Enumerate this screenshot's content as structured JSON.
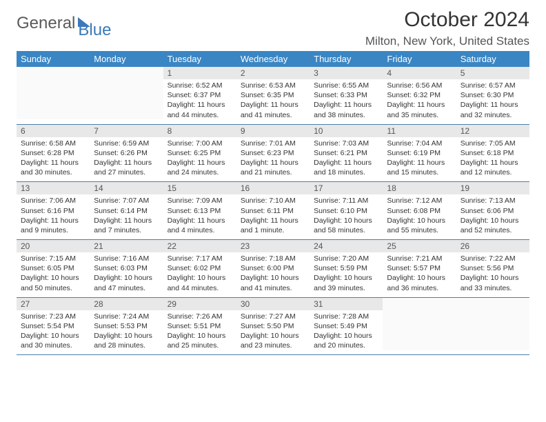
{
  "brand": {
    "part1": "General",
    "part2": "Blue"
  },
  "title": "October 2024",
  "location": "Milton, New York, United States",
  "colors": {
    "header_bg": "#3a86c4",
    "header_fg": "#ffffff",
    "daynum_bg": "#e8e8e8",
    "row_border": "#4a7fa8",
    "text": "#333333",
    "logo_accent": "#3a7ab8"
  },
  "day_names": [
    "Sunday",
    "Monday",
    "Tuesday",
    "Wednesday",
    "Thursday",
    "Friday",
    "Saturday"
  ],
  "weeks": [
    [
      {
        "n": "",
        "sr": "",
        "ss": "",
        "dl": ""
      },
      {
        "n": "",
        "sr": "",
        "ss": "",
        "dl": ""
      },
      {
        "n": "1",
        "sr": "Sunrise: 6:52 AM",
        "ss": "Sunset: 6:37 PM",
        "dl": "Daylight: 11 hours and 44 minutes."
      },
      {
        "n": "2",
        "sr": "Sunrise: 6:53 AM",
        "ss": "Sunset: 6:35 PM",
        "dl": "Daylight: 11 hours and 41 minutes."
      },
      {
        "n": "3",
        "sr": "Sunrise: 6:55 AM",
        "ss": "Sunset: 6:33 PM",
        "dl": "Daylight: 11 hours and 38 minutes."
      },
      {
        "n": "4",
        "sr": "Sunrise: 6:56 AM",
        "ss": "Sunset: 6:32 PM",
        "dl": "Daylight: 11 hours and 35 minutes."
      },
      {
        "n": "5",
        "sr": "Sunrise: 6:57 AM",
        "ss": "Sunset: 6:30 PM",
        "dl": "Daylight: 11 hours and 32 minutes."
      }
    ],
    [
      {
        "n": "6",
        "sr": "Sunrise: 6:58 AM",
        "ss": "Sunset: 6:28 PM",
        "dl": "Daylight: 11 hours and 30 minutes."
      },
      {
        "n": "7",
        "sr": "Sunrise: 6:59 AM",
        "ss": "Sunset: 6:26 PM",
        "dl": "Daylight: 11 hours and 27 minutes."
      },
      {
        "n": "8",
        "sr": "Sunrise: 7:00 AM",
        "ss": "Sunset: 6:25 PM",
        "dl": "Daylight: 11 hours and 24 minutes."
      },
      {
        "n": "9",
        "sr": "Sunrise: 7:01 AM",
        "ss": "Sunset: 6:23 PM",
        "dl": "Daylight: 11 hours and 21 minutes."
      },
      {
        "n": "10",
        "sr": "Sunrise: 7:03 AM",
        "ss": "Sunset: 6:21 PM",
        "dl": "Daylight: 11 hours and 18 minutes."
      },
      {
        "n": "11",
        "sr": "Sunrise: 7:04 AM",
        "ss": "Sunset: 6:19 PM",
        "dl": "Daylight: 11 hours and 15 minutes."
      },
      {
        "n": "12",
        "sr": "Sunrise: 7:05 AM",
        "ss": "Sunset: 6:18 PM",
        "dl": "Daylight: 11 hours and 12 minutes."
      }
    ],
    [
      {
        "n": "13",
        "sr": "Sunrise: 7:06 AM",
        "ss": "Sunset: 6:16 PM",
        "dl": "Daylight: 11 hours and 9 minutes."
      },
      {
        "n": "14",
        "sr": "Sunrise: 7:07 AM",
        "ss": "Sunset: 6:14 PM",
        "dl": "Daylight: 11 hours and 7 minutes."
      },
      {
        "n": "15",
        "sr": "Sunrise: 7:09 AM",
        "ss": "Sunset: 6:13 PM",
        "dl": "Daylight: 11 hours and 4 minutes."
      },
      {
        "n": "16",
        "sr": "Sunrise: 7:10 AM",
        "ss": "Sunset: 6:11 PM",
        "dl": "Daylight: 11 hours and 1 minute."
      },
      {
        "n": "17",
        "sr": "Sunrise: 7:11 AM",
        "ss": "Sunset: 6:10 PM",
        "dl": "Daylight: 10 hours and 58 minutes."
      },
      {
        "n": "18",
        "sr": "Sunrise: 7:12 AM",
        "ss": "Sunset: 6:08 PM",
        "dl": "Daylight: 10 hours and 55 minutes."
      },
      {
        "n": "19",
        "sr": "Sunrise: 7:13 AM",
        "ss": "Sunset: 6:06 PM",
        "dl": "Daylight: 10 hours and 52 minutes."
      }
    ],
    [
      {
        "n": "20",
        "sr": "Sunrise: 7:15 AM",
        "ss": "Sunset: 6:05 PM",
        "dl": "Daylight: 10 hours and 50 minutes."
      },
      {
        "n": "21",
        "sr": "Sunrise: 7:16 AM",
        "ss": "Sunset: 6:03 PM",
        "dl": "Daylight: 10 hours and 47 minutes."
      },
      {
        "n": "22",
        "sr": "Sunrise: 7:17 AM",
        "ss": "Sunset: 6:02 PM",
        "dl": "Daylight: 10 hours and 44 minutes."
      },
      {
        "n": "23",
        "sr": "Sunrise: 7:18 AM",
        "ss": "Sunset: 6:00 PM",
        "dl": "Daylight: 10 hours and 41 minutes."
      },
      {
        "n": "24",
        "sr": "Sunrise: 7:20 AM",
        "ss": "Sunset: 5:59 PM",
        "dl": "Daylight: 10 hours and 39 minutes."
      },
      {
        "n": "25",
        "sr": "Sunrise: 7:21 AM",
        "ss": "Sunset: 5:57 PM",
        "dl": "Daylight: 10 hours and 36 minutes."
      },
      {
        "n": "26",
        "sr": "Sunrise: 7:22 AM",
        "ss": "Sunset: 5:56 PM",
        "dl": "Daylight: 10 hours and 33 minutes."
      }
    ],
    [
      {
        "n": "27",
        "sr": "Sunrise: 7:23 AM",
        "ss": "Sunset: 5:54 PM",
        "dl": "Daylight: 10 hours and 30 minutes."
      },
      {
        "n": "28",
        "sr": "Sunrise: 7:24 AM",
        "ss": "Sunset: 5:53 PM",
        "dl": "Daylight: 10 hours and 28 minutes."
      },
      {
        "n": "29",
        "sr": "Sunrise: 7:26 AM",
        "ss": "Sunset: 5:51 PM",
        "dl": "Daylight: 10 hours and 25 minutes."
      },
      {
        "n": "30",
        "sr": "Sunrise: 7:27 AM",
        "ss": "Sunset: 5:50 PM",
        "dl": "Daylight: 10 hours and 23 minutes."
      },
      {
        "n": "31",
        "sr": "Sunrise: 7:28 AM",
        "ss": "Sunset: 5:49 PM",
        "dl": "Daylight: 10 hours and 20 minutes."
      },
      {
        "n": "",
        "sr": "",
        "ss": "",
        "dl": ""
      },
      {
        "n": "",
        "sr": "",
        "ss": "",
        "dl": ""
      }
    ]
  ]
}
